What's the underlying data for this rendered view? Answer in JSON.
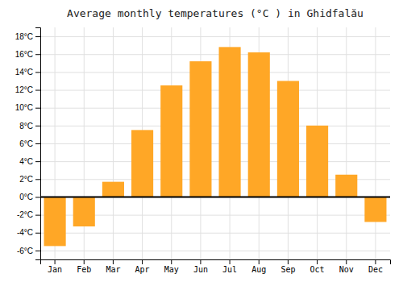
{
  "chart_data": {
    "type": "bar",
    "title": "Average monthly temperatures (°C ) in Ghidfalău",
    "categories": [
      "Jan",
      "Feb",
      "Mar",
      "Apr",
      "May",
      "Jun",
      "Jul",
      "Aug",
      "Sep",
      "Oct",
      "Nov",
      "Dec"
    ],
    "values": [
      -5.5,
      -3.3,
      1.7,
      7.5,
      12.5,
      15.2,
      16.8,
      16.2,
      13.0,
      8.0,
      2.5,
      -2.8
    ],
    "color": "#FFA726",
    "ylim": [
      -7,
      19
    ],
    "yticks": [
      {
        "value": -6,
        "label": "-6°C"
      },
      {
        "value": -4,
        "label": "-4°C"
      },
      {
        "value": -2,
        "label": "-2°C"
      },
      {
        "value": 0,
        "label": "0°C"
      },
      {
        "value": 2,
        "label": "2°C"
      },
      {
        "value": 4,
        "label": "4°C"
      },
      {
        "value": 6,
        "label": "6°C"
      },
      {
        "value": 8,
        "label": "8°C"
      },
      {
        "value": 10,
        "label": "10°C"
      },
      {
        "value": 12,
        "label": "12°C"
      },
      {
        "value": 14,
        "label": "14°C"
      },
      {
        "value": 16,
        "label": "16°C"
      },
      {
        "value": 18,
        "label": "18°C"
      }
    ],
    "grid": true
  }
}
